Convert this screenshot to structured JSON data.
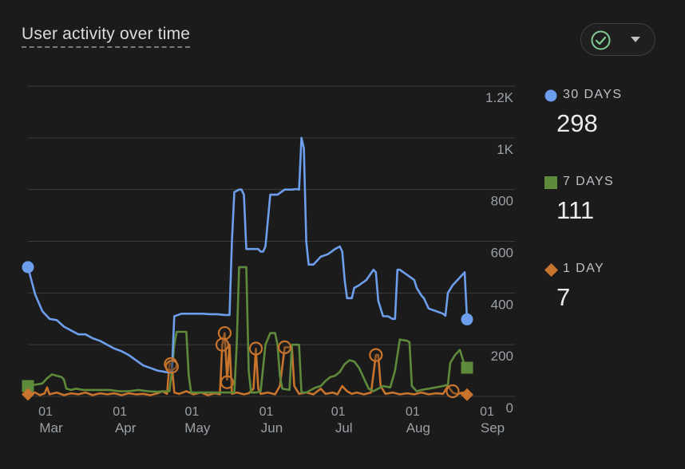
{
  "card": {
    "title": "User activity over time",
    "status_icon": "check-circle-icon",
    "dropdown_icon": "caret-down-icon"
  },
  "legend": [
    {
      "key": "30d",
      "label": "30 DAYS",
      "value": "298",
      "color": "#6d9eeb",
      "marker": "circle"
    },
    {
      "key": "7d",
      "label": "7 DAYS",
      "value": "111",
      "color": "#5e8a3c",
      "marker": "square"
    },
    {
      "key": "1d",
      "label": "1 DAY",
      "value": "7",
      "color": "#c8742c",
      "marker": "diamond"
    }
  ],
  "chart_data": {
    "type": "line",
    "title": "User activity over time",
    "x_start": "2023-02-25",
    "x_end": "2023-09-02",
    "x_ticks": [
      {
        "day": 4,
        "label_day": "01",
        "label_month": "Mar"
      },
      {
        "day": 35,
        "label_day": "01",
        "label_month": "Apr"
      },
      {
        "day": 65,
        "label_day": "01",
        "label_month": "May"
      },
      {
        "day": 96,
        "label_day": "01",
        "label_month": "Jun"
      },
      {
        "day": 126,
        "label_day": "01",
        "label_month": "Jul"
      },
      {
        "day": 157,
        "label_day": "01",
        "label_month": "Aug"
      },
      {
        "day": 188,
        "label_day": "01",
        "label_month": "Sep"
      }
    ],
    "y_ticks": [
      {
        "value": 0,
        "label": "0"
      },
      {
        "value": 200,
        "label": "200"
      },
      {
        "value": 400,
        "label": "400"
      },
      {
        "value": 600,
        "label": "600"
      },
      {
        "value": 800,
        "label": "800"
      },
      {
        "value": 1000,
        "label": "1K"
      },
      {
        "value": 1200,
        "label": "1.2K"
      }
    ],
    "ylim": [
      0,
      1200
    ],
    "grid": true,
    "series": [
      {
        "name": "30 DAYS",
        "color": "#6d9eeb",
        "marker": "circle",
        "last_value": 298,
        "points": [
          [
            0,
            500
          ],
          [
            3,
            395
          ],
          [
            6,
            330
          ],
          [
            9,
            300
          ],
          [
            12,
            295
          ],
          [
            15,
            270
          ],
          [
            18,
            255
          ],
          [
            21,
            240
          ],
          [
            24,
            240
          ],
          [
            27,
            225
          ],
          [
            30,
            215
          ],
          [
            33,
            200
          ],
          [
            36,
            185
          ],
          [
            39,
            175
          ],
          [
            42,
            160
          ],
          [
            45,
            140
          ],
          [
            48,
            120
          ],
          [
            51,
            110
          ],
          [
            54,
            100
          ],
          [
            57,
            95
          ],
          [
            59,
            92
          ],
          [
            60,
            95
          ],
          [
            61,
            310
          ],
          [
            64,
            320
          ],
          [
            67,
            320
          ],
          [
            70,
            320
          ],
          [
            73,
            320
          ],
          [
            76,
            318
          ],
          [
            79,
            318
          ],
          [
            82,
            315
          ],
          [
            84,
            315
          ],
          [
            85,
            600
          ],
          [
            86,
            790
          ],
          [
            88,
            800
          ],
          [
            89,
            800
          ],
          [
            90,
            780
          ],
          [
            91,
            570
          ],
          [
            93,
            570
          ],
          [
            96,
            570
          ],
          [
            97,
            560
          ],
          [
            98,
            560
          ],
          [
            99,
            580
          ],
          [
            100,
            680
          ],
          [
            101,
            780
          ],
          [
            104,
            780
          ],
          [
            107,
            800
          ],
          [
            110,
            800
          ],
          [
            112,
            802
          ],
          [
            113,
            800
          ],
          [
            114,
            1000
          ],
          [
            115,
            960
          ],
          [
            116,
            600
          ],
          [
            117,
            510
          ],
          [
            119,
            510
          ],
          [
            120,
            520
          ],
          [
            122,
            540
          ],
          [
            125,
            550
          ],
          [
            128,
            570
          ],
          [
            130,
            580
          ],
          [
            131,
            560
          ],
          [
            132,
            450
          ],
          [
            133,
            380
          ],
          [
            135,
            380
          ],
          [
            136,
            420
          ],
          [
            138,
            430
          ],
          [
            141,
            450
          ],
          [
            144,
            490
          ],
          [
            145,
            480
          ],
          [
            146,
            370
          ],
          [
            148,
            310
          ],
          [
            150,
            310
          ],
          [
            152,
            300
          ],
          [
            153,
            300
          ],
          [
            154,
            490
          ],
          [
            155,
            490
          ],
          [
            158,
            470
          ],
          [
            161,
            450
          ],
          [
            162,
            420
          ],
          [
            164,
            390
          ],
          [
            165,
            380
          ],
          [
            167,
            340
          ],
          [
            170,
            330
          ],
          [
            173,
            320
          ],
          [
            174,
            312
          ],
          [
            175,
            400
          ],
          [
            177,
            430
          ],
          [
            180,
            460
          ],
          [
            181,
            470
          ],
          [
            182,
            480
          ],
          [
            183,
            298
          ]
        ]
      },
      {
        "name": "7 DAYS",
        "color": "#5e8a3c",
        "marker": "square",
        "last_value": 111,
        "points": [
          [
            0,
            40
          ],
          [
            3,
            45
          ],
          [
            6,
            50
          ],
          [
            8,
            70
          ],
          [
            10,
            85
          ],
          [
            12,
            80
          ],
          [
            14,
            75
          ],
          [
            15,
            65
          ],
          [
            16,
            30
          ],
          [
            18,
            25
          ],
          [
            20,
            30
          ],
          [
            23,
            25
          ],
          [
            26,
            25
          ],
          [
            30,
            25
          ],
          [
            34,
            25
          ],
          [
            38,
            20
          ],
          [
            42,
            20
          ],
          [
            46,
            25
          ],
          [
            50,
            20
          ],
          [
            54,
            18
          ],
          [
            57,
            20
          ],
          [
            59,
            20
          ],
          [
            60,
            100
          ],
          [
            61,
            200
          ],
          [
            62,
            250
          ],
          [
            66,
            250
          ],
          [
            67,
            80
          ],
          [
            68,
            15
          ],
          [
            70,
            15
          ],
          [
            73,
            15
          ],
          [
            76,
            15
          ],
          [
            79,
            15
          ],
          [
            83,
            15
          ],
          [
            86,
            15
          ],
          [
            87,
            200
          ],
          [
            88,
            500
          ],
          [
            91,
            500
          ],
          [
            92,
            100
          ],
          [
            93,
            15
          ],
          [
            95,
            15
          ],
          [
            97,
            20
          ],
          [
            99,
            200
          ],
          [
            101,
            245
          ],
          [
            103,
            245
          ],
          [
            104,
            200
          ],
          [
            105,
            80
          ],
          [
            106,
            30
          ],
          [
            109,
            25
          ],
          [
            110,
            200
          ],
          [
            113,
            200
          ],
          [
            114,
            15
          ],
          [
            116,
            15
          ],
          [
            118,
            25
          ],
          [
            120,
            35
          ],
          [
            122,
            40
          ],
          [
            124,
            60
          ],
          [
            126,
            75
          ],
          [
            128,
            80
          ],
          [
            130,
            95
          ],
          [
            132,
            125
          ],
          [
            134,
            140
          ],
          [
            136,
            135
          ],
          [
            138,
            110
          ],
          [
            140,
            70
          ],
          [
            142,
            30
          ],
          [
            144,
            20
          ],
          [
            148,
            40
          ],
          [
            151,
            35
          ],
          [
            153,
            100
          ],
          [
            155,
            220
          ],
          [
            158,
            215
          ],
          [
            159,
            210
          ],
          [
            160,
            40
          ],
          [
            162,
            20
          ],
          [
            164,
            25
          ],
          [
            167,
            30
          ],
          [
            170,
            35
          ],
          [
            173,
            40
          ],
          [
            175,
            45
          ],
          [
            176,
            130
          ],
          [
            178,
            160
          ],
          [
            180,
            180
          ],
          [
            181,
            150
          ],
          [
            182,
            120
          ],
          [
            183,
            111
          ]
        ]
      },
      {
        "name": "1 DAY",
        "color": "#c8742c",
        "marker": "diamond",
        "last_value": 7,
        "points": [
          [
            0,
            8
          ],
          [
            3,
            15
          ],
          [
            5,
            5
          ],
          [
            7,
            12
          ],
          [
            8,
            35
          ],
          [
            9,
            8
          ],
          [
            12,
            15
          ],
          [
            15,
            5
          ],
          [
            18,
            12
          ],
          [
            21,
            8
          ],
          [
            24,
            15
          ],
          [
            27,
            5
          ],
          [
            30,
            12
          ],
          [
            33,
            8
          ],
          [
            36,
            12
          ],
          [
            39,
            5
          ],
          [
            42,
            12
          ],
          [
            45,
            8
          ],
          [
            48,
            10
          ],
          [
            51,
            5
          ],
          [
            54,
            12
          ],
          [
            56,
            20
          ],
          [
            58,
            10
          ],
          [
            59,
            130
          ],
          [
            60,
            120
          ],
          [
            61,
            15
          ],
          [
            63,
            10
          ],
          [
            66,
            20
          ],
          [
            69,
            8
          ],
          [
            72,
            15
          ],
          [
            75,
            5
          ],
          [
            78,
            12
          ],
          [
            80,
            8
          ],
          [
            81,
            200
          ],
          [
            82,
            245
          ],
          [
            83,
            65
          ],
          [
            84,
            200
          ],
          [
            85,
            10
          ],
          [
            87,
            15
          ],
          [
            90,
            8
          ],
          [
            92,
            12
          ],
          [
            94,
            30
          ],
          [
            95,
            185
          ],
          [
            96,
            30
          ],
          [
            97,
            10
          ],
          [
            100,
            15
          ],
          [
            103,
            8
          ],
          [
            105,
            40
          ],
          [
            107,
            190
          ],
          [
            108,
            190
          ],
          [
            110,
            190
          ],
          [
            111,
            40
          ],
          [
            113,
            10
          ],
          [
            116,
            15
          ],
          [
            119,
            8
          ],
          [
            122,
            30
          ],
          [
            124,
            10
          ],
          [
            127,
            15
          ],
          [
            129,
            8
          ],
          [
            131,
            40
          ],
          [
            133,
            20
          ],
          [
            135,
            10
          ],
          [
            137,
            15
          ],
          [
            140,
            8
          ],
          [
            143,
            15
          ],
          [
            145,
            160
          ],
          [
            146,
            160
          ],
          [
            147,
            40
          ],
          [
            149,
            10
          ],
          [
            152,
            15
          ],
          [
            155,
            8
          ],
          [
            158,
            12
          ],
          [
            161,
            8
          ],
          [
            164,
            15
          ],
          [
            167,
            8
          ],
          [
            170,
            12
          ],
          [
            173,
            10
          ],
          [
            175,
            40
          ],
          [
            177,
            15
          ],
          [
            179,
            8
          ],
          [
            181,
            15
          ],
          [
            183,
            7
          ]
        ],
        "annotations": [
          [
            59.5,
            125
          ],
          [
            60,
            115
          ],
          [
            81,
            200
          ],
          [
            82,
            245
          ],
          [
            83,
            55
          ],
          [
            95,
            185
          ],
          [
            107,
            190
          ],
          [
            145,
            160
          ],
          [
            177,
            20
          ]
        ]
      }
    ]
  }
}
